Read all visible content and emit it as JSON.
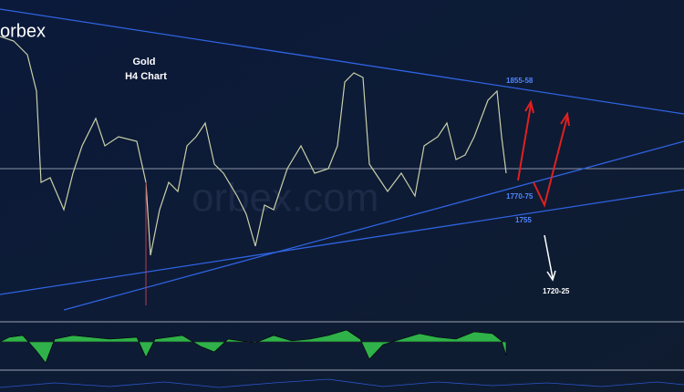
{
  "logo": "orbex",
  "title": "Gold",
  "subtitle": "H4 Chart",
  "levels": [
    "1855-58",
    "1770-75",
    "1755",
    "1720-25"
  ],
  "watermark": "orbex.com"
}
